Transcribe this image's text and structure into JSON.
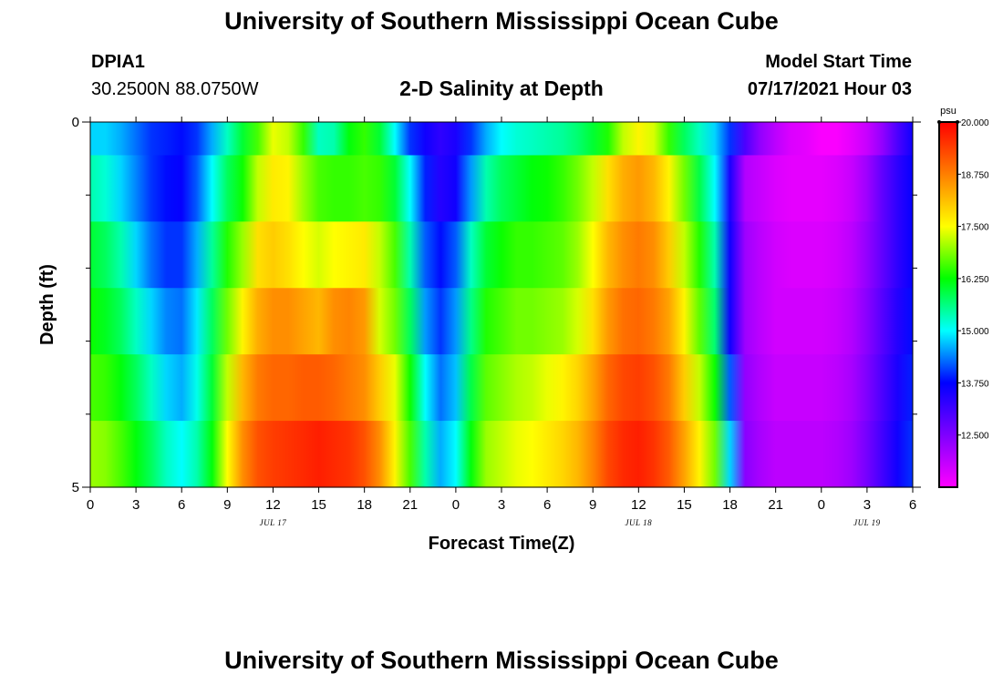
{
  "page": {
    "title_top": "University of Southern Mississippi Ocean Cube",
    "title_bottom": "University of Southern Mississippi Ocean Cube"
  },
  "header": {
    "station_id": "DPIA1",
    "location": "30.2500N  88.0750W",
    "plot_title": "2-D Salinity at Depth",
    "model_start_label": "Model Start Time",
    "model_start_value": "07/17/2021 Hour 03"
  },
  "chart_data": {
    "type": "heatmap",
    "title": "2-D Salinity at Depth",
    "xlabel": "Forecast Time(Z)",
    "ylabel": "Depth (ft)",
    "x_tick_labels": [
      "0",
      "3",
      "6",
      "9",
      "12",
      "15",
      "18",
      "21",
      "0",
      "3",
      "6",
      "9",
      "12",
      "15",
      "18",
      "21",
      "0",
      "3",
      "6"
    ],
    "x_range_hours": [
      0,
      54
    ],
    "date_labels": [
      {
        "label": "JUL 17",
        "hour": 12
      },
      {
        "label": "JUL 18",
        "hour": 36
      },
      {
        "label": "JUL 19",
        "hour": 51
      }
    ],
    "y_tick_labels": [
      "0",
      "5"
    ],
    "y_range": [
      0,
      5
    ],
    "depth_levels": 5,
    "colorbar": {
      "unit": "psu",
      "min": 11.25,
      "max": 20.0,
      "tick_labels": [
        "20.000",
        "18.750",
        "17.500",
        "16.250",
        "15.000",
        "13.750",
        "12.500"
      ],
      "tick_values": [
        20.0,
        18.75,
        17.5,
        16.25,
        15.0,
        13.75,
        12.5
      ],
      "colors": [
        "#ff00ff",
        "#7f00ff",
        "#0000ff",
        "#00ffff",
        "#00ff00",
        "#ffff00",
        "#ff7f00",
        "#ff0000"
      ]
    },
    "time_hours": [
      0,
      1,
      2,
      3,
      4,
      5,
      6,
      7,
      8,
      9,
      10,
      11,
      12,
      13,
      14,
      15,
      16,
      17,
      18,
      19,
      20,
      21,
      22,
      23,
      24,
      25,
      26,
      27,
      28,
      29,
      30,
      31,
      32,
      33,
      34,
      35,
      36,
      37,
      38,
      39,
      40,
      41,
      42,
      43,
      44,
      45,
      46,
      47,
      48,
      49,
      50,
      51,
      52,
      53,
      54
    ],
    "salinity_by_depth": [
      [
        14.8,
        14.8,
        14.6,
        14.3,
        14.0,
        13.9,
        13.8,
        14.0,
        14.6,
        15.3,
        16.0,
        16.6,
        17.4,
        17.2,
        16.5,
        15.3,
        15.4,
        16.2,
        16.5,
        16.0,
        15.0,
        14.0,
        13.6,
        13.3,
        13.5,
        14.0,
        14.6,
        15.0,
        15.2,
        15.3,
        15.4,
        15.5,
        15.7,
        16.0,
        16.4,
        17.2,
        17.6,
        17.3,
        16.5,
        15.8,
        15.3,
        14.8,
        14.0,
        13.0,
        12.3,
        11.9,
        11.6,
        11.5,
        11.3,
        11.3,
        11.5,
        11.8,
        12.3,
        13.0,
        13.6
      ],
      [
        15.4,
        15.2,
        14.8,
        14.4,
        14.0,
        13.8,
        13.7,
        14.2,
        15.0,
        15.8,
        16.3,
        17.2,
        17.7,
        17.6,
        17.0,
        16.6,
        16.5,
        16.5,
        16.6,
        16.5,
        16.0,
        15.0,
        13.9,
        13.4,
        13.6,
        14.5,
        15.4,
        15.8,
        16.0,
        16.2,
        16.3,
        16.5,
        16.8,
        17.2,
        17.8,
        18.3,
        18.5,
        18.2,
        17.6,
        16.8,
        15.9,
        15.0,
        13.5,
        12.0,
        11.8,
        11.6,
        11.5,
        11.5,
        11.5,
        11.6,
        11.8,
        12.2,
        12.8,
        13.3,
        13.7
      ],
      [
        16.0,
        15.8,
        15.4,
        14.8,
        14.3,
        14.0,
        14.0,
        14.6,
        15.5,
        16.4,
        17.0,
        17.8,
        18.0,
        17.8,
        17.5,
        17.3,
        17.5,
        17.6,
        17.7,
        17.2,
        16.6,
        15.4,
        14.2,
        13.8,
        14.2,
        15.3,
        16.0,
        16.3,
        16.5,
        16.5,
        16.6,
        16.7,
        17.0,
        17.5,
        18.2,
        18.6,
        18.8,
        18.6,
        18.0,
        17.2,
        16.4,
        15.4,
        13.6,
        12.2,
        11.9,
        11.7,
        11.6,
        11.6,
        11.6,
        11.7,
        11.9,
        12.3,
        12.8,
        13.3,
        13.7
      ],
      [
        16.3,
        16.1,
        15.8,
        15.3,
        14.8,
        14.4,
        14.3,
        14.9,
        15.8,
        16.8,
        17.6,
        18.3,
        18.6,
        18.6,
        18.4,
        18.2,
        18.6,
        18.7,
        18.5,
        17.3,
        16.8,
        15.8,
        14.5,
        14.0,
        14.5,
        15.6,
        16.4,
        16.6,
        16.8,
        16.8,
        16.9,
        17.0,
        17.3,
        17.8,
        18.5,
        18.9,
        19.0,
        18.8,
        18.4,
        17.6,
        16.7,
        15.7,
        13.6,
        12.2,
        11.9,
        11.7,
        11.7,
        11.7,
        11.7,
        11.8,
        12.0,
        12.4,
        12.9,
        13.4,
        13.8
      ],
      [
        16.6,
        16.5,
        16.2,
        15.8,
        15.3,
        14.8,
        14.6,
        15.1,
        16.0,
        17.2,
        18.2,
        18.8,
        19.0,
        19.0,
        19.1,
        19.1,
        19.0,
        18.8,
        18.6,
        18.0,
        17.4,
        16.3,
        15.0,
        14.3,
        14.7,
        15.9,
        16.7,
        16.9,
        17.1,
        17.2,
        17.4,
        17.6,
        17.9,
        18.4,
        19.0,
        19.3,
        19.4,
        19.2,
        18.8,
        18.0,
        17.2,
        16.3,
        14.2,
        12.3,
        12.0,
        11.8,
        11.8,
        11.8,
        11.8,
        11.9,
        12.1,
        12.5,
        13.0,
        13.5,
        13.9
      ],
      [
        17.0,
        16.9,
        16.6,
        16.2,
        15.8,
        15.3,
        15.0,
        15.4,
        16.2,
        17.5,
        18.6,
        19.2,
        19.4,
        19.5,
        19.6,
        19.7,
        19.6,
        19.5,
        19.2,
        18.6,
        17.6,
        16.6,
        15.4,
        14.6,
        15.0,
        16.2,
        17.0,
        17.2,
        17.4,
        17.5,
        17.7,
        17.9,
        18.2,
        18.7,
        19.3,
        19.6,
        19.7,
        19.5,
        19.1,
        18.4,
        17.6,
        16.8,
        14.8,
        12.4,
        12.1,
        11.9,
        11.9,
        11.9,
        11.9,
        12.0,
        12.2,
        12.6,
        13.1,
        13.6,
        14.0
      ]
    ]
  }
}
